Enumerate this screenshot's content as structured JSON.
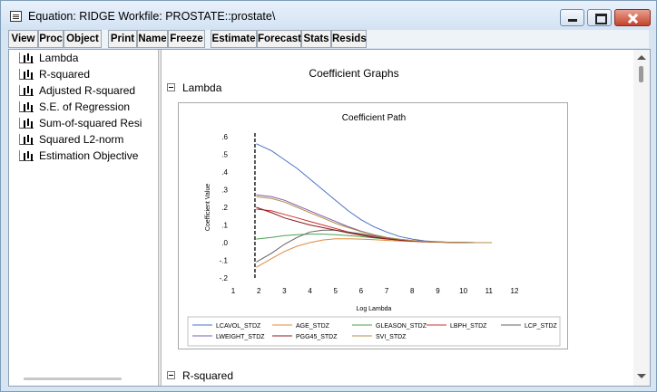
{
  "window": {
    "title": "Equation: RIDGE   Workfile: PROSTATE::prostate\\"
  },
  "toolbar": {
    "buttons": [
      {
        "label": "View",
        "icon": null
      },
      {
        "label": "Proc"
      },
      {
        "label": "Object"
      },
      {
        "label": "Print"
      },
      {
        "label": "Name"
      },
      {
        "label": "Freeze"
      },
      {
        "label": "Estimate"
      },
      {
        "label": "Forecast"
      },
      {
        "label": "Stats"
      },
      {
        "label": "Resids"
      }
    ]
  },
  "tree": {
    "icon": "bar-graph-icon",
    "items": [
      {
        "label": "Lambda"
      },
      {
        "label": "R-squared"
      },
      {
        "label": "Adjusted R-squared"
      },
      {
        "label": "S.E. of Regression"
      },
      {
        "label": "Sum-of-squared Resi"
      },
      {
        "label": "Squared L2-norm"
      },
      {
        "label": "Estimation Objective"
      }
    ]
  },
  "panel": {
    "title": "Coefficient Graphs",
    "sections": [
      {
        "label": "Lambda"
      },
      {
        "label": "R-squared"
      }
    ]
  },
  "chart_data": {
    "type": "line",
    "title": "Coefficient Path",
    "xlabel": "Log Lambda",
    "ylabel": "Coefficient Value",
    "xlim": [
      1,
      12
    ],
    "ylim": [
      -0.2,
      0.6
    ],
    "xticks": [
      "1",
      "2",
      "3",
      "4",
      "5",
      "6",
      "7",
      "8",
      "9",
      "10",
      "11",
      "12"
    ],
    "yticks": [
      ".6",
      ".5",
      ".4",
      ".3",
      ".2",
      ".1",
      ".0",
      "-.1",
      "-.2"
    ],
    "reference_line_x": 1.85,
    "legend_placement": "bottom",
    "x": [
      1.9,
      2.5,
      3.0,
      3.5,
      4.0,
      4.5,
      5.0,
      5.5,
      6.0,
      6.5,
      7.0,
      7.5,
      8.0,
      8.5,
      9.0,
      9.5,
      10.0,
      10.5,
      11.1
    ],
    "series": [
      {
        "name": "LCAVOL_STDZ",
        "color": "#4a72c4",
        "values": [
          0.56,
          0.52,
          0.47,
          0.42,
          0.36,
          0.3,
          0.24,
          0.18,
          0.13,
          0.09,
          0.06,
          0.035,
          0.02,
          0.01,
          0.005,
          0.002,
          0.001,
          0.0,
          0.0
        ]
      },
      {
        "name": "AGE_STDZ",
        "color": "#e08a3c",
        "values": [
          -0.14,
          -0.09,
          -0.05,
          -0.02,
          0.0,
          0.015,
          0.022,
          0.022,
          0.02,
          0.017,
          0.013,
          0.009,
          0.006,
          0.004,
          0.002,
          0.001,
          0.0,
          0.0,
          0.0
        ]
      },
      {
        "name": "GLEASON_STDZ",
        "color": "#4ca24c",
        "values": [
          0.02,
          0.03,
          0.04,
          0.045,
          0.048,
          0.048,
          0.045,
          0.04,
          0.034,
          0.027,
          0.02,
          0.014,
          0.009,
          0.006,
          0.003,
          0.002,
          0.001,
          0.0,
          0.0
        ]
      },
      {
        "name": "LBPH_STDZ",
        "color": "#c83232",
        "values": [
          0.19,
          0.18,
          0.16,
          0.14,
          0.12,
          0.1,
          0.08,
          0.06,
          0.045,
          0.032,
          0.022,
          0.014,
          0.009,
          0.005,
          0.003,
          0.001,
          0.0,
          0.0,
          0.0
        ]
      },
      {
        "name": "LCP_STDZ",
        "color": "#606060",
        "values": [
          -0.11,
          -0.06,
          -0.01,
          0.03,
          0.06,
          0.07,
          0.07,
          0.06,
          0.05,
          0.038,
          0.027,
          0.018,
          0.011,
          0.006,
          0.003,
          0.001,
          0.0,
          0.0,
          0.0
        ]
      },
      {
        "name": "LWEIGHT_STDZ",
        "color": "#7a5ca8",
        "values": [
          0.27,
          0.26,
          0.24,
          0.21,
          0.18,
          0.15,
          0.12,
          0.09,
          0.065,
          0.045,
          0.03,
          0.019,
          0.012,
          0.007,
          0.004,
          0.002,
          0.001,
          0.0,
          0.0
        ]
      },
      {
        "name": "PGG45_STDZ",
        "color": "#8a1818",
        "values": [
          0.2,
          0.17,
          0.14,
          0.12,
          0.1,
          0.085,
          0.07,
          0.055,
          0.042,
          0.03,
          0.021,
          0.014,
          0.009,
          0.005,
          0.003,
          0.001,
          0.0,
          0.0,
          0.0
        ]
      },
      {
        "name": "SVI_STDZ",
        "color": "#b48c46",
        "values": [
          0.26,
          0.25,
          0.23,
          0.2,
          0.17,
          0.14,
          0.11,
          0.085,
          0.062,
          0.043,
          0.029,
          0.019,
          0.012,
          0.007,
          0.004,
          0.002,
          0.001,
          0.0,
          0.0
        ]
      }
    ]
  }
}
